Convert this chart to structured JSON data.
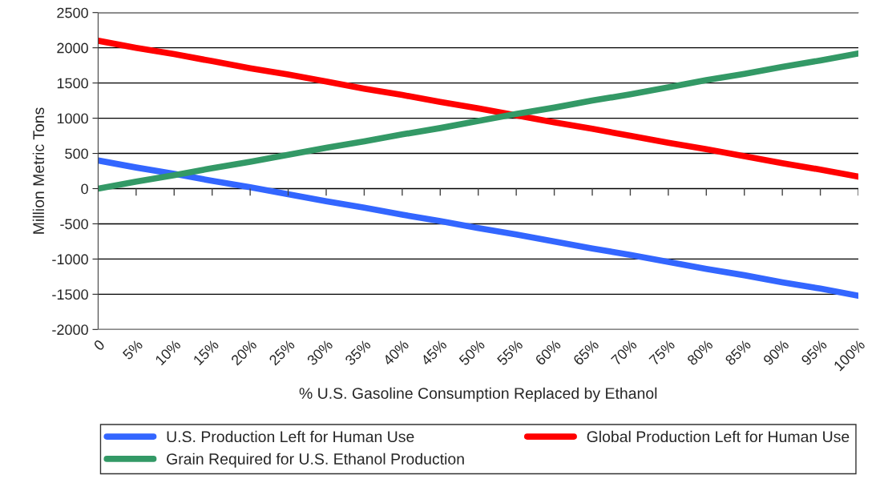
{
  "chart_data": {
    "type": "line",
    "xlabel": "% U.S. Gasoline Consumption Replaced by Ethanol",
    "ylabel": "Million Metric Tons",
    "categories": [
      "0",
      "5%",
      "10%",
      "15%",
      "20%",
      "25%",
      "30%",
      "35%",
      "40%",
      "45%",
      "50%",
      "55%",
      "60%",
      "65%",
      "70%",
      "75%",
      "80%",
      "85%",
      "90%",
      "95%",
      "100%"
    ],
    "series": [
      {
        "name": "U.S. Production Left for Human Use",
        "color": "#3366ff",
        "values": [
          400,
          300,
          210,
          110,
          20,
          -80,
          -180,
          -270,
          -370,
          -460,
          -560,
          -650,
          -750,
          -850,
          -940,
          -1040,
          -1140,
          -1230,
          -1330,
          -1420,
          -1520
        ]
      },
      {
        "name": "Global Production Left for Human Use",
        "color": "#ff0000",
        "values": [
          2100,
          2000,
          1910,
          1810,
          1710,
          1620,
          1520,
          1420,
          1330,
          1230,
          1140,
          1040,
          940,
          850,
          750,
          650,
          560,
          460,
          360,
          270,
          170
        ]
      },
      {
        "name": "Grain Required for U.S. Ethanol Production",
        "color": "#339966",
        "values": [
          0,
          100,
          190,
          290,
          380,
          480,
          580,
          670,
          770,
          860,
          960,
          1060,
          1150,
          1250,
          1340,
          1440,
          1540,
          1630,
          1730,
          1820,
          1920
        ]
      }
    ],
    "ylim": [
      -2000,
      2500
    ],
    "yticks": [
      -2000,
      -1500,
      -1000,
      -500,
      0,
      500,
      1000,
      1500,
      2000,
      2500
    ],
    "grid": "y",
    "legend": "bottom",
    "marker": "none",
    "line_style": "solid"
  }
}
